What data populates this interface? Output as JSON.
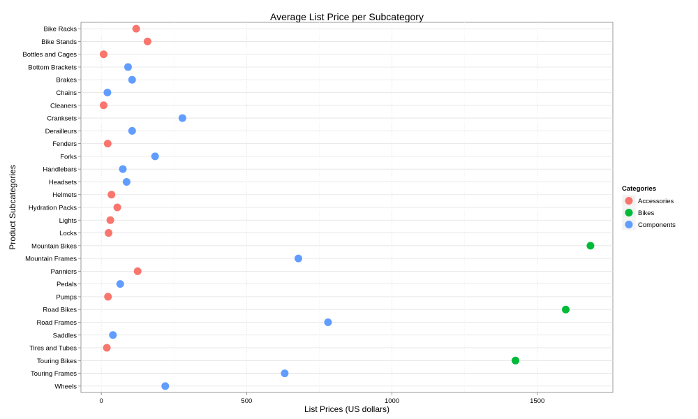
{
  "chart_data": {
    "type": "scatter",
    "title": "Average List Price per Subcategory",
    "xlabel": "List Prices (US dollars)",
    "ylabel": "Product Subcategories",
    "xlim": [
      -70,
      1760
    ],
    "xticks": [
      0,
      500,
      1000,
      1500
    ],
    "grid": true,
    "legend": {
      "title": "Categories",
      "position": "right",
      "entries": [
        {
          "name": "Accessories",
          "color": "#F8766D"
        },
        {
          "name": "Bikes",
          "color": "#00BA38"
        },
        {
          "name": "Components",
          "color": "#619CFF"
        }
      ]
    },
    "categories": [
      "Bike Racks",
      "Bike Stands",
      "Bottles and Cages",
      "Bottom Brackets",
      "Brakes",
      "Chains",
      "Cleaners",
      "Cranksets",
      "Derailleurs",
      "Fenders",
      "Forks",
      "Handlebars",
      "Headsets",
      "Helmets",
      "Hydration Packs",
      "Lights",
      "Locks",
      "Mountain Bikes",
      "Mountain Frames",
      "Panniers",
      "Pedals",
      "Pumps",
      "Road Bikes",
      "Road Frames",
      "Saddles",
      "Tires and Tubes",
      "Touring Bikes",
      "Touring Frames",
      "Wheels"
    ],
    "points": [
      {
        "y": "Bike Racks",
        "x": 120,
        "category": "Accessories"
      },
      {
        "y": "Bike Stands",
        "x": 159,
        "category": "Accessories"
      },
      {
        "y": "Bottles and Cages",
        "x": 8,
        "category": "Accessories"
      },
      {
        "y": "Bottom Brackets",
        "x": 92,
        "category": "Components"
      },
      {
        "y": "Brakes",
        "x": 106,
        "category": "Components"
      },
      {
        "y": "Chains",
        "x": 21,
        "category": "Components"
      },
      {
        "y": "Cleaners",
        "x": 8,
        "category": "Accessories"
      },
      {
        "y": "Cranksets",
        "x": 279,
        "category": "Components"
      },
      {
        "y": "Derailleurs",
        "x": 106,
        "category": "Components"
      },
      {
        "y": "Fenders",
        "x": 22,
        "category": "Accessories"
      },
      {
        "y": "Forks",
        "x": 185,
        "category": "Components"
      },
      {
        "y": "Handlebars",
        "x": 74,
        "category": "Components"
      },
      {
        "y": "Headsets",
        "x": 87,
        "category": "Components"
      },
      {
        "y": "Helmets",
        "x": 35,
        "category": "Accessories"
      },
      {
        "y": "Hydration Packs",
        "x": 55,
        "category": "Accessories"
      },
      {
        "y": "Lights",
        "x": 31,
        "category": "Accessories"
      },
      {
        "y": "Locks",
        "x": 25,
        "category": "Accessories"
      },
      {
        "y": "Mountain Bikes",
        "x": 1683,
        "category": "Bikes"
      },
      {
        "y": "Mountain Frames",
        "x": 678,
        "category": "Components"
      },
      {
        "y": "Panniers",
        "x": 125,
        "category": "Accessories"
      },
      {
        "y": "Pedals",
        "x": 65,
        "category": "Components"
      },
      {
        "y": "Pumps",
        "x": 23,
        "category": "Accessories"
      },
      {
        "y": "Road Bikes",
        "x": 1598,
        "category": "Bikes"
      },
      {
        "y": "Road Frames",
        "x": 780,
        "category": "Components"
      },
      {
        "y": "Saddles",
        "x": 40,
        "category": "Components"
      },
      {
        "y": "Tires and Tubes",
        "x": 19,
        "category": "Accessories"
      },
      {
        "y": "Touring Bikes",
        "x": 1425,
        "category": "Bikes"
      },
      {
        "y": "Touring Frames",
        "x": 631,
        "category": "Components"
      },
      {
        "y": "Wheels",
        "x": 220,
        "category": "Components"
      }
    ]
  }
}
